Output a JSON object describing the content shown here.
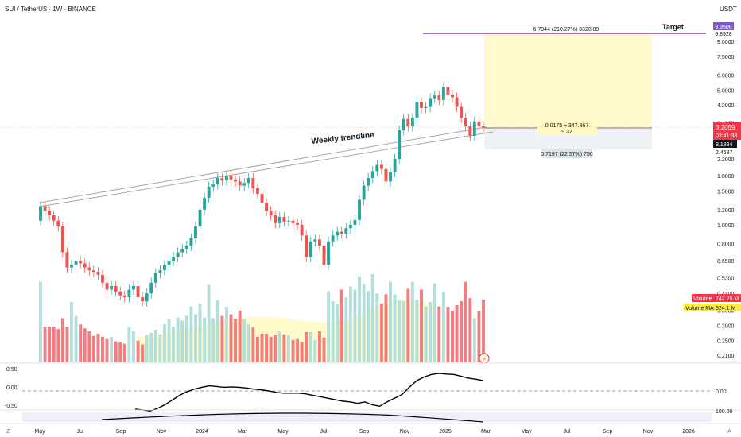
{
  "header": {
    "symbol_line": "SUI / TetherUS · 1W · BINANCE",
    "currency": "USDT"
  },
  "annotations": {
    "trendline_label": "Weekly trendline",
    "target_label": "Target",
    "profit_box_label": "6.7044 (210.27%) 3328.89",
    "entry_label_line1": "0.0175 ÷ 347.367",
    "entry_label_line2": "9.32",
    "stop_box_label": "0.7197 (22.57%) 750",
    "volume_badge": "Volume",
    "volume_value": "742.25 M",
    "volume_ma_badge": "Volume MA",
    "volume_ma_value": "624.1 M",
    "last_price": "3.2059",
    "countdown": "03:41:38",
    "stop_price_tag": "3.1884",
    "target_price_tag": "9.9506",
    "target_level_tag": "9.8928",
    "stop_level_tag": "2.4687",
    "lightning_icon": "⚡"
  },
  "colors": {
    "up": "#26a69a",
    "down": "#ef5350",
    "vol_up": "#b2dfdb",
    "vol_down": "#f77c80",
    "target_line": "#7b1fa2",
    "profit_fill": "#fff9c4",
    "stop_fill": "#f0f3fa",
    "ma_fill": "#fff59d",
    "last_price": "#f23645"
  },
  "chart_data": {
    "type": "candlestick",
    "title": "SUI / TetherUS · 1W · BINANCE",
    "y_scale": "log",
    "y_ticks": [
      "9.0000",
      "7.5000",
      "6.0000",
      "5.0000",
      "4.2000",
      "3.4000",
      "2.2000",
      "1.8000",
      "1.5000",
      "1.2000",
      "1.0000",
      "0.8000",
      "0.6500",
      "0.5300",
      "0.4400",
      "0.3600",
      "0.3000",
      "0.2500",
      "0.2100"
    ],
    "time_ticks": [
      "May",
      "Jul",
      "Sep",
      "Nov",
      "2024",
      "Mar",
      "May",
      "Jul",
      "Sep",
      "Nov",
      "2025",
      "Mar",
      "May",
      "Jul",
      "Sep",
      "Nov",
      "2026"
    ],
    "closes": [
      1.25,
      1.18,
      1.12,
      1.05,
      0.98,
      0.72,
      0.6,
      0.62,
      0.65,
      0.63,
      0.6,
      0.58,
      0.57,
      0.55,
      0.5,
      0.46,
      0.48,
      0.45,
      0.43,
      0.42,
      0.46,
      0.48,
      0.42,
      0.4,
      0.44,
      0.5,
      0.56,
      0.58,
      0.62,
      0.65,
      0.68,
      0.72,
      0.75,
      0.78,
      0.85,
      0.98,
      1.2,
      1.38,
      1.58,
      1.62,
      1.75,
      1.7,
      1.8,
      1.72,
      1.68,
      1.6,
      1.65,
      1.75,
      1.55,
      1.45,
      1.3,
      1.18,
      1.12,
      1.02,
      1.1,
      1.04,
      1.05,
      1.02,
      1.0,
      0.88,
      0.68,
      0.82,
      0.84,
      0.78,
      0.62,
      0.82,
      0.88,
      0.92,
      0.9,
      0.96,
      1.0,
      1.06,
      1.35,
      1.6,
      1.75,
      1.9,
      2.05,
      1.95,
      1.68,
      1.88,
      2.2,
      3.1,
      3.55,
      3.25,
      3.6,
      4.35,
      4.05,
      4.1,
      4.55,
      4.7,
      4.45,
      5.2,
      4.75,
      4.6,
      4.1,
      3.6,
      3.25,
      2.9,
      3.45,
      3.25,
      3.21
    ],
    "volumes": [
      520,
      230,
      230,
      230,
      215,
      285,
      230,
      390,
      300,
      245,
      220,
      200,
      170,
      185,
      165,
      150,
      165,
      135,
      130,
      120,
      225,
      200,
      140,
      115,
      175,
      190,
      210,
      180,
      245,
      280,
      230,
      290,
      270,
      300,
      360,
      310,
      380,
      290,
      500,
      285,
      400,
      300,
      355,
      310,
      280,
      335,
      280,
      245,
      225,
      165,
      185,
      185,
      165,
      175,
      200,
      180,
      175,
      145,
      150,
      130,
      195,
      195,
      145,
      200,
      160,
      460,
      395,
      375,
      470,
      420,
      490,
      470,
      555,
      505,
      460,
      570,
      445,
      380,
      440,
      520,
      440,
      400,
      395,
      475,
      520,
      405,
      470,
      360,
      390,
      510,
      360,
      455,
      355,
      330,
      370,
      395,
      520,
      415,
      285,
      330,
      405
    ],
    "volume_ma": [
      165,
      170,
      172,
      175,
      178,
      183,
      188,
      194,
      200,
      205,
      210,
      216,
      222,
      228,
      235,
      241,
      248,
      255,
      262,
      268,
      273,
      278,
      282,
      285,
      288,
      290,
      292,
      293,
      294,
      294,
      293,
      291,
      289,
      286,
      282,
      278,
      274,
      270,
      266,
      262,
      258,
      256,
      255,
      256,
      258,
      262,
      268,
      275,
      284,
      295,
      308,
      322,
      336,
      350,
      362,
      374,
      384,
      392,
      398,
      402,
      404,
      403,
      400,
      396,
      390,
      383,
      375,
      365
    ],
    "rsi_like": [
      -0.5,
      -0.52,
      -0.55,
      -0.48,
      -0.38,
      -0.25,
      -0.12,
      -0.02,
      0.05,
      0.1,
      0.14,
      0.12,
      0.1,
      0.11,
      0.1,
      0.08,
      0.05,
      0.03,
      0.0,
      -0.04,
      -0.06,
      -0.06,
      -0.06,
      -0.08,
      -0.12,
      -0.16,
      -0.2,
      -0.24,
      -0.28,
      -0.3,
      -0.34,
      -0.3,
      -0.38,
      -0.42,
      -0.3,
      -0.2,
      -0.1,
      0.1,
      0.28,
      0.38,
      0.45,
      0.48,
      0.46,
      0.45,
      0.4,
      0.35,
      0.32,
      0.28
    ],
    "osc_ticks": [
      "0.50",
      "0.00",
      "-0.50",
      "0.00"
    ],
    "osc2_tick": "100.00"
  }
}
